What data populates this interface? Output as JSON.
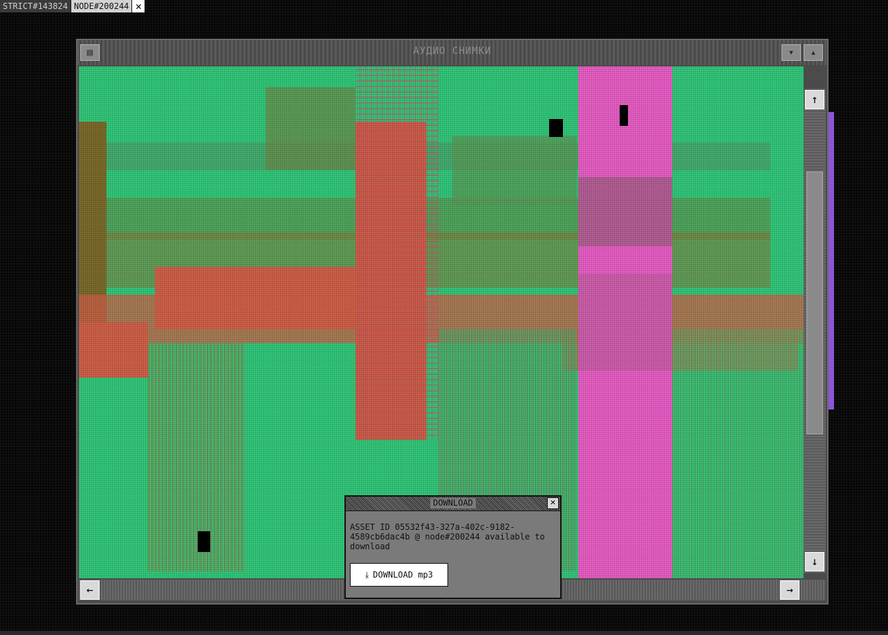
{
  "tabs": [
    {
      "label": "STRICT#143824"
    },
    {
      "label": "NODE#200244"
    }
  ],
  "tab_close_label": "✕",
  "viewer": {
    "title": "АУДИО СНИМКИ"
  },
  "icons": {
    "scroll_up": "↑",
    "scroll_down": "↓",
    "scroll_left": "←",
    "scroll_right": "→",
    "download": "⤓"
  },
  "dialog": {
    "title": "DOWNLOAD",
    "close_label": "✕",
    "message": "ASSET ID 05532f43-327a-402c-9182-4589cb6dac4b @ node#200244 available to download",
    "button_label": "DOWNLOAD mp3"
  },
  "colors": {
    "green": "#33c97c",
    "pink": "#ea5fc7",
    "salmon": "#d26149",
    "olive": "#7d6c2c",
    "purple": "#8b55d6"
  }
}
